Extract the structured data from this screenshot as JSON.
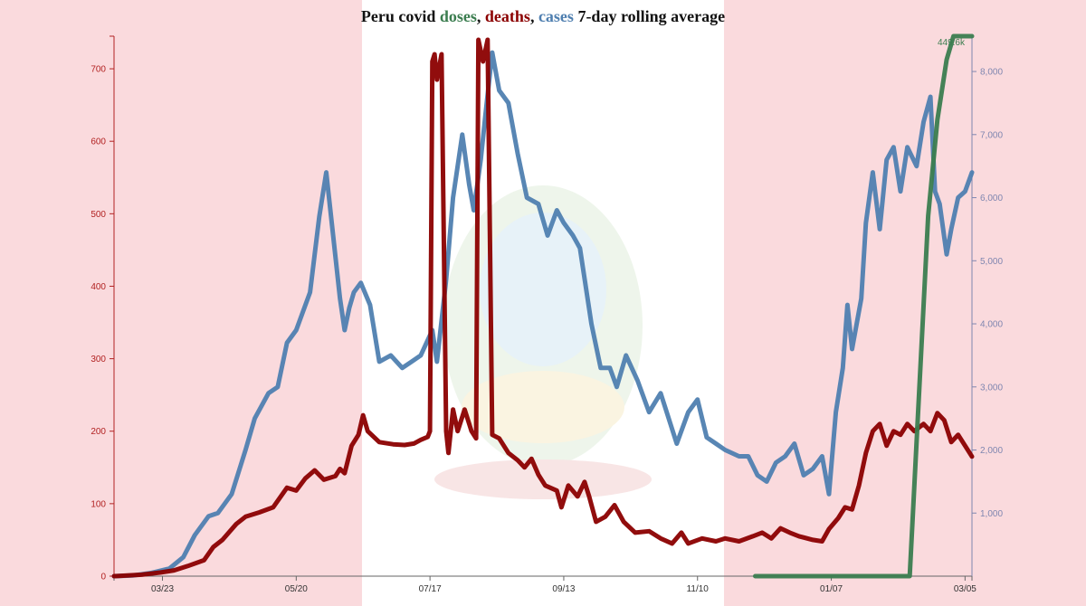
{
  "title": {
    "part1": "Peru covid ",
    "doses": "doses",
    "sep1": ", ",
    "deaths": "deaths",
    "sep2": ", ",
    "cases": "cases",
    "part2": " 7-day rolling average"
  },
  "colors": {
    "doses": "#3b7d4f",
    "deaths": "#8b0000",
    "cases": "#4f7fb0",
    "left_axis": "#b22222",
    "right_axis": "#7f86b0",
    "flag_red": "#fadadd",
    "flag_white": "#ffffff"
  },
  "chart_data": {
    "type": "line",
    "title": "Peru covid doses, deaths, cases 7-day rolling average",
    "x_start": "2020-03-02",
    "x_end": "2021-03-09",
    "x_ticks": [
      "03/23",
      "05/20",
      "07/17",
      "09/13",
      "11/10",
      "01/07",
      "03/05"
    ],
    "left_axis": {
      "series": "deaths",
      "ylim": [
        0,
        745
      ],
      "ticks": [
        0,
        100,
        200,
        300,
        400,
        500,
        600,
        700
      ]
    },
    "right_axis": {
      "series": "cases",
      "ylim": [
        0,
        8560
      ],
      "ticks": [
        "1,000",
        "2,000",
        "3,000",
        "4,000",
        "5,000",
        "6,000",
        "7,000",
        "8,000"
      ]
    },
    "doses_axis": {
      "max_label": "449.6k",
      "ylim": [
        0,
        449600
      ]
    },
    "series": [
      {
        "name": "deaths",
        "axis": "left",
        "points": [
          [
            "2020-03-02",
            0
          ],
          [
            "2020-03-14",
            2
          ],
          [
            "2020-03-22",
            5
          ],
          [
            "2020-03-28",
            8
          ],
          [
            "2020-04-03",
            14
          ],
          [
            "2020-04-10",
            22
          ],
          [
            "2020-04-14",
            40
          ],
          [
            "2020-04-18",
            50
          ],
          [
            "2020-04-24",
            72
          ],
          [
            "2020-04-28",
            82
          ],
          [
            "2020-05-04",
            88
          ],
          [
            "2020-05-10",
            95
          ],
          [
            "2020-05-16",
            122
          ],
          [
            "2020-05-20",
            118
          ],
          [
            "2020-05-24",
            135
          ],
          [
            "2020-05-28",
            146
          ],
          [
            "2020-06-01",
            133
          ],
          [
            "2020-06-06",
            138
          ],
          [
            "2020-06-08",
            148
          ],
          [
            "2020-06-10",
            142
          ],
          [
            "2020-06-13",
            180
          ],
          [
            "2020-06-16",
            195
          ],
          [
            "2020-06-18",
            222
          ],
          [
            "2020-06-20",
            200
          ],
          [
            "2020-06-25",
            185
          ],
          [
            "2020-07-01",
            182
          ],
          [
            "2020-07-06",
            181
          ],
          [
            "2020-07-10",
            183
          ],
          [
            "2020-07-13",
            188
          ],
          [
            "2020-07-16",
            192
          ],
          [
            "2020-07-17",
            200
          ],
          [
            "2020-07-18",
            710
          ],
          [
            "2020-07-19",
            720
          ],
          [
            "2020-07-20",
            685
          ],
          [
            "2020-07-22",
            720
          ],
          [
            "2020-07-24",
            200
          ],
          [
            "2020-07-25",
            170
          ],
          [
            "2020-07-27",
            230
          ],
          [
            "2020-07-29",
            200
          ],
          [
            "2020-08-01",
            230
          ],
          [
            "2020-08-03",
            210
          ],
          [
            "2020-08-04",
            200
          ],
          [
            "2020-08-06",
            190
          ],
          [
            "2020-08-07",
            740
          ],
          [
            "2020-08-09",
            710
          ],
          [
            "2020-08-11",
            740
          ],
          [
            "2020-08-13",
            195
          ],
          [
            "2020-08-16",
            190
          ],
          [
            "2020-08-20",
            170
          ],
          [
            "2020-08-24",
            160
          ],
          [
            "2020-08-27",
            150
          ],
          [
            "2020-08-30",
            162
          ],
          [
            "2020-09-02",
            140
          ],
          [
            "2020-09-05",
            125
          ],
          [
            "2020-09-10",
            118
          ],
          [
            "2020-09-12",
            95
          ],
          [
            "2020-09-15",
            125
          ],
          [
            "2020-09-19",
            110
          ],
          [
            "2020-09-22",
            130
          ],
          [
            "2020-09-24",
            110
          ],
          [
            "2020-09-27",
            75
          ],
          [
            "2020-10-01",
            82
          ],
          [
            "2020-10-05",
            98
          ],
          [
            "2020-10-09",
            75
          ],
          [
            "2020-10-14",
            60
          ],
          [
            "2020-10-20",
            62
          ],
          [
            "2020-10-25",
            52
          ],
          [
            "2020-10-30",
            45
          ],
          [
            "2020-11-03",
            60
          ],
          [
            "2020-11-06",
            45
          ],
          [
            "2020-11-12",
            52
          ],
          [
            "2020-11-18",
            48
          ],
          [
            "2020-11-22",
            52
          ],
          [
            "2020-11-28",
            48
          ],
          [
            "2020-12-04",
            55
          ],
          [
            "2020-12-08",
            60
          ],
          [
            "2020-12-12",
            52
          ],
          [
            "2020-12-16",
            66
          ],
          [
            "2020-12-20",
            60
          ],
          [
            "2020-12-24",
            55
          ],
          [
            "2020-12-30",
            50
          ],
          [
            "2021-01-03",
            48
          ],
          [
            "2021-01-06",
            65
          ],
          [
            "2021-01-10",
            80
          ],
          [
            "2021-01-13",
            95
          ],
          [
            "2021-01-16",
            92
          ],
          [
            "2021-01-19",
            125
          ],
          [
            "2021-01-22",
            170
          ],
          [
            "2021-01-25",
            200
          ],
          [
            "2021-01-28",
            210
          ],
          [
            "2021-01-31",
            180
          ],
          [
            "2021-02-03",
            200
          ],
          [
            "2021-02-06",
            195
          ],
          [
            "2021-02-09",
            210
          ],
          [
            "2021-02-12",
            200
          ],
          [
            "2021-02-16",
            210
          ],
          [
            "2021-02-19",
            200
          ],
          [
            "2021-02-22",
            225
          ],
          [
            "2021-02-25",
            215
          ],
          [
            "2021-02-28",
            185
          ],
          [
            "2021-03-03",
            195
          ],
          [
            "2021-03-06",
            180
          ],
          [
            "2021-03-09",
            165
          ]
        ]
      },
      {
        "name": "cases",
        "axis": "right",
        "points": [
          [
            "2020-03-02",
            0
          ],
          [
            "2020-03-10",
            10
          ],
          [
            "2020-03-18",
            50
          ],
          [
            "2020-03-26",
            120
          ],
          [
            "2020-04-01",
            300
          ],
          [
            "2020-04-06",
            650
          ],
          [
            "2020-04-12",
            950
          ],
          [
            "2020-04-16",
            1000
          ],
          [
            "2020-04-22",
            1300
          ],
          [
            "2020-04-28",
            2000
          ],
          [
            "2020-05-02",
            2500
          ],
          [
            "2020-05-08",
            2900
          ],
          [
            "2020-05-12",
            3000
          ],
          [
            "2020-05-16",
            3700
          ],
          [
            "2020-05-20",
            3900
          ],
          [
            "2020-05-26",
            4500
          ],
          [
            "2020-05-30",
            5700
          ],
          [
            "2020-06-02",
            6400
          ],
          [
            "2020-06-05",
            5400
          ],
          [
            "2020-06-08",
            4400
          ],
          [
            "2020-06-10",
            3900
          ],
          [
            "2020-06-12",
            4250
          ],
          [
            "2020-06-14",
            4500
          ],
          [
            "2020-06-17",
            4650
          ],
          [
            "2020-06-21",
            4300
          ],
          [
            "2020-06-25",
            3400
          ],
          [
            "2020-06-30",
            3500
          ],
          [
            "2020-07-05",
            3300
          ],
          [
            "2020-07-09",
            3400
          ],
          [
            "2020-07-13",
            3500
          ],
          [
            "2020-07-18",
            3900
          ],
          [
            "2020-07-20",
            3400
          ],
          [
            "2020-07-24",
            4700
          ],
          [
            "2020-07-27",
            6000
          ],
          [
            "2020-07-31",
            7000
          ],
          [
            "2020-08-03",
            6200
          ],
          [
            "2020-08-05",
            5800
          ],
          [
            "2020-08-08",
            6600
          ],
          [
            "2020-08-10",
            7300
          ],
          [
            "2020-08-13",
            8300
          ],
          [
            "2020-08-16",
            7700
          ],
          [
            "2020-08-20",
            7500
          ],
          [
            "2020-08-24",
            6700
          ],
          [
            "2020-08-28",
            6000
          ],
          [
            "2020-09-02",
            5900
          ],
          [
            "2020-09-06",
            5400
          ],
          [
            "2020-09-10",
            5800
          ],
          [
            "2020-09-13",
            5600
          ],
          [
            "2020-09-17",
            5400
          ],
          [
            "2020-09-20",
            5200
          ],
          [
            "2020-09-25",
            4000
          ],
          [
            "2020-09-29",
            3300
          ],
          [
            "2020-10-03",
            3300
          ],
          [
            "2020-10-06",
            3000
          ],
          [
            "2020-10-10",
            3500
          ],
          [
            "2020-10-15",
            3100
          ],
          [
            "2020-10-20",
            2600
          ],
          [
            "2020-10-25",
            2900
          ],
          [
            "2020-11-01",
            2100
          ],
          [
            "2020-11-06",
            2600
          ],
          [
            "2020-11-10",
            2800
          ],
          [
            "2020-11-14",
            2200
          ],
          [
            "2020-11-18",
            2100
          ],
          [
            "2020-11-22",
            2000
          ],
          [
            "2020-11-28",
            1900
          ],
          [
            "2020-12-02",
            1900
          ],
          [
            "2020-12-06",
            1600
          ],
          [
            "2020-12-10",
            1500
          ],
          [
            "2020-12-14",
            1800
          ],
          [
            "2020-12-18",
            1900
          ],
          [
            "2020-12-22",
            2100
          ],
          [
            "2020-12-26",
            1600
          ],
          [
            "2020-12-30",
            1700
          ],
          [
            "2021-01-03",
            1900
          ],
          [
            "2021-01-06",
            1300
          ],
          [
            "2021-01-09",
            2600
          ],
          [
            "2021-01-12",
            3300
          ],
          [
            "2021-01-14",
            4300
          ],
          [
            "2021-01-16",
            3600
          ],
          [
            "2021-01-20",
            4400
          ],
          [
            "2021-01-22",
            5600
          ],
          [
            "2021-01-25",
            6400
          ],
          [
            "2021-01-28",
            5500
          ],
          [
            "2021-01-31",
            6600
          ],
          [
            "2021-02-03",
            6800
          ],
          [
            "2021-02-06",
            6100
          ],
          [
            "2021-02-09",
            6800
          ],
          [
            "2021-02-13",
            6500
          ],
          [
            "2021-02-16",
            7200
          ],
          [
            "2021-02-19",
            7600
          ],
          [
            "2021-02-21",
            6100
          ],
          [
            "2021-02-23",
            5900
          ],
          [
            "2021-02-26",
            5100
          ],
          [
            "2021-02-28",
            5500
          ],
          [
            "2021-03-03",
            6000
          ],
          [
            "2021-03-06",
            6100
          ],
          [
            "2021-03-09",
            6400
          ]
        ]
      },
      {
        "name": "doses",
        "axis": "doses",
        "points": [
          [
            "2020-12-05",
            0
          ],
          [
            "2021-02-08",
            0
          ],
          [
            "2021-02-10",
            0
          ],
          [
            "2021-02-14",
            150000
          ],
          [
            "2021-02-18",
            300000
          ],
          [
            "2021-02-22",
            380000
          ],
          [
            "2021-02-26",
            430000
          ],
          [
            "2021-03-01",
            449600
          ],
          [
            "2021-03-09",
            449600
          ]
        ]
      }
    ]
  }
}
